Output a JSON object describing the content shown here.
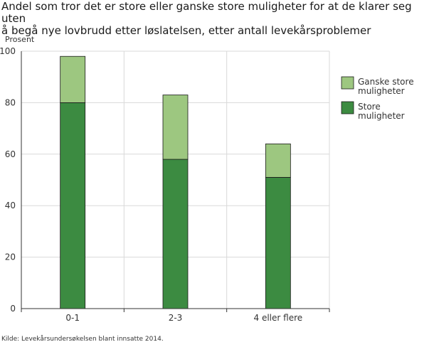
{
  "chart_data": {
    "type": "bar",
    "stacked": true,
    "title_lines": [
      "Andel som tror det er store eller ganske store muligheter for at de klarer seg uten",
      "å begå nye lovbrudd etter løslatelsen, etter antall levekårsproblemer"
    ],
    "ylabel": "Prosent",
    "xlabel": "",
    "categories": [
      "0-1",
      "2-3",
      "4 eller flere"
    ],
    "ylim": [
      0,
      100
    ],
    "yticks": [
      "0",
      "20",
      "40",
      "60",
      "80",
      "100"
    ],
    "grid": true,
    "legend_position": "right",
    "series": [
      {
        "name": "Store muligheter",
        "legend_lines": [
          "Store",
          "muligheter"
        ],
        "color": "#3c8b41",
        "values": [
          80,
          58,
          51
        ]
      },
      {
        "name": "Ganske store muligheter",
        "legend_lines": [
          "Ganske store",
          "muligheter"
        ],
        "color": "#9dc780",
        "values": [
          18,
          25,
          13
        ]
      }
    ]
  },
  "source": "Kilde: Levekårsundersøkelsen blant innsatte 2014."
}
